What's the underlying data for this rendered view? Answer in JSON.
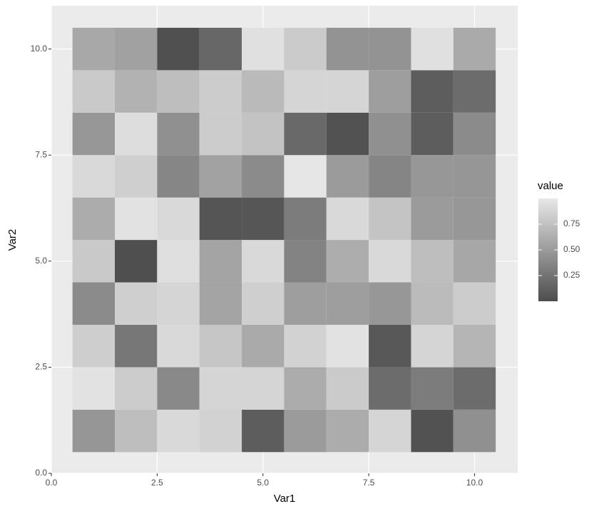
{
  "chart_data": {
    "type": "heatmap",
    "x_label": "Var1",
    "y_label": "Var2",
    "x": [
      1,
      2,
      3,
      4,
      5,
      6,
      7,
      8,
      9,
      10
    ],
    "y": [
      1,
      2,
      3,
      4,
      5,
      6,
      7,
      8,
      9,
      10
    ],
    "z": [
      [
        0.47,
        0.73,
        0.9,
        0.86,
        0.1,
        0.5,
        0.61,
        0.88,
        0.03,
        0.43
      ],
      [
        0.96,
        0.82,
        0.39,
        0.88,
        0.88,
        0.61,
        0.81,
        0.2,
        0.3,
        0.2
      ],
      [
        0.83,
        0.27,
        0.9,
        0.78,
        0.6,
        0.86,
        0.96,
        0.07,
        0.88,
        0.67
      ],
      [
        0.4,
        0.84,
        0.88,
        0.56,
        0.84,
        0.52,
        0.52,
        0.48,
        0.71,
        0.82
      ],
      [
        0.8,
        0.01,
        0.94,
        0.56,
        0.9,
        0.35,
        0.62,
        0.9,
        0.73,
        0.58
      ],
      [
        0.61,
        0.96,
        0.9,
        0.05,
        0.06,
        0.3,
        0.9,
        0.77,
        0.5,
        0.48
      ],
      [
        0.9,
        0.84,
        0.37,
        0.55,
        0.4,
        0.99,
        0.5,
        0.36,
        0.48,
        0.47
      ],
      [
        0.48,
        0.93,
        0.43,
        0.82,
        0.76,
        0.18,
        0.03,
        0.43,
        0.1,
        0.4
      ],
      [
        0.8,
        0.65,
        0.73,
        0.82,
        0.7,
        0.88,
        0.88,
        0.52,
        0.1,
        0.2
      ],
      [
        0.59,
        0.54,
        0.02,
        0.17,
        0.95,
        0.81,
        0.45,
        0.45,
        0.95,
        0.6
      ]
    ],
    "xlim": [
      0,
      11.02
    ],
    "ylim": [
      0,
      11.02
    ],
    "xticks": [
      {
        "value": 0,
        "label": "0.0"
      },
      2.5,
      {
        "value": 5,
        "label": "5.0"
      },
      7.5,
      {
        "value": 10,
        "label": "10.0"
      }
    ],
    "yticks": [
      {
        "value": 0,
        "label": "0.0"
      },
      2.5,
      {
        "value": 5,
        "label": "5.0"
      },
      7.5,
      {
        "value": 10,
        "label": "10.0"
      }
    ],
    "legend_title": "value",
    "zlim": [
      0,
      1
    ],
    "zticks": [
      0.25,
      {
        "value": 0.5,
        "label": "0.50"
      },
      0.75
    ],
    "low_color": "#4d4d4d",
    "high_color": "#e8e8e8",
    "grid": true
  }
}
